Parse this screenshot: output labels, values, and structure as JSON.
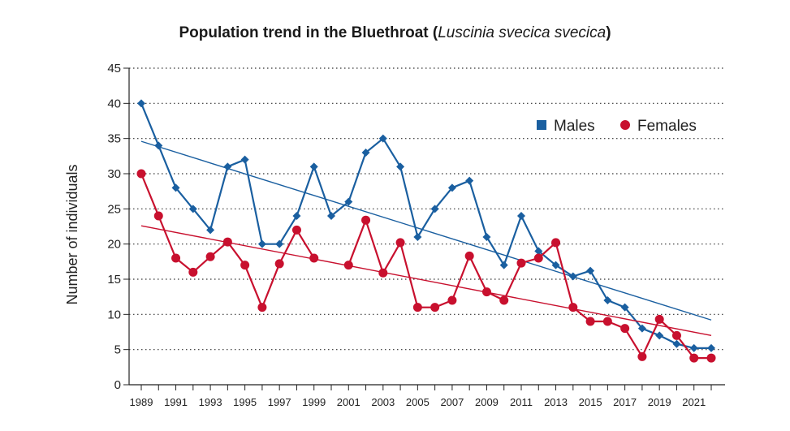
{
  "chart_data": {
    "type": "line",
    "title_main": "Population trend in the Bluethroat (",
    "title_italic": "Luscinia svecica svecica",
    "title_end": ")",
    "xlabel": "",
    "ylabel": "Number of individuals",
    "x": [
      1989,
      1990,
      1991,
      1992,
      1993,
      1994,
      1995,
      1996,
      1997,
      1998,
      1999,
      2000,
      2001,
      2002,
      2003,
      2004,
      2005,
      2006,
      2007,
      2008,
      2009,
      2010,
      2011,
      2012,
      2013,
      2014,
      2015,
      2016,
      2017,
      2018,
      2019,
      2020,
      2021,
      2022
    ],
    "x_tick_labels": [
      "1989",
      "1991",
      "1993",
      "1995",
      "1997",
      "1999",
      "2001",
      "2003",
      "2005",
      "2007",
      "2009",
      "2011",
      "2013",
      "2015",
      "2017",
      "2019",
      "2021"
    ],
    "y_ticks": [
      0,
      5,
      10,
      15,
      20,
      25,
      30,
      35,
      40,
      45
    ],
    "ylim": [
      0,
      45
    ],
    "grid": "horizontal dotted",
    "legend_position": "top-right",
    "series": [
      {
        "name": "Males",
        "color": "#1a5fa0",
        "marker": "diamond",
        "values": [
          40,
          34,
          28,
          25,
          22,
          31,
          32,
          20,
          20,
          24,
          31,
          24,
          26,
          33,
          35,
          31,
          21,
          25,
          28,
          29,
          21,
          17,
          24,
          19,
          17,
          15.4,
          16.2,
          12,
          11,
          8,
          7,
          5.8,
          5.2,
          5.2
        ],
        "trend": [
          34.6,
          9.2
        ]
      },
      {
        "name": "Females",
        "color": "#c8102e",
        "marker": "circle",
        "values": [
          30,
          24,
          18,
          16,
          18.2,
          20.3,
          17,
          11,
          17.2,
          22,
          18,
          null,
          17,
          23.4,
          15.9,
          20.2,
          11,
          11,
          12,
          18.3,
          13.2,
          12,
          17.3,
          18,
          20.2,
          11,
          9,
          9,
          8,
          4,
          9.3,
          7,
          3.8,
          3.8
        ],
        "trend": [
          22.6,
          7
        ]
      }
    ]
  }
}
